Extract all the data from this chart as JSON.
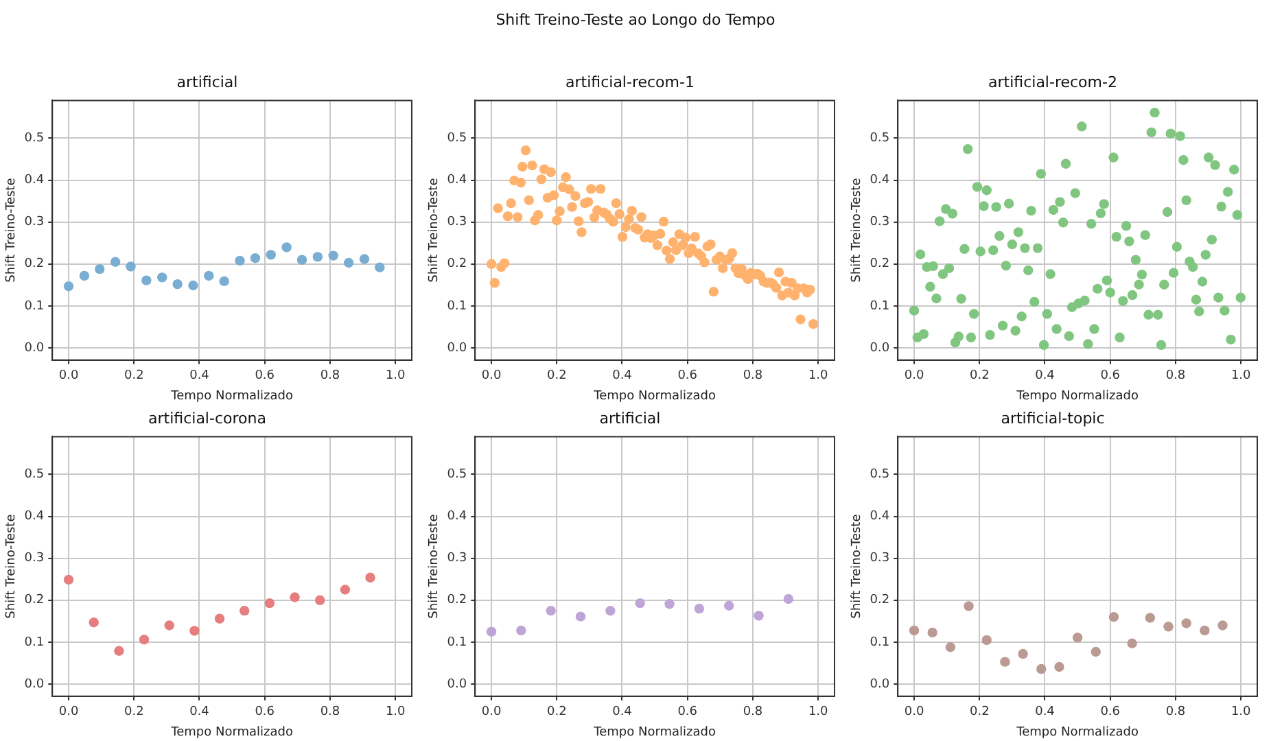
{
  "chart_data": [
    {
      "type": "scatter",
      "title": "artificial",
      "xlabel": "Tempo Normalizado",
      "ylabel": "Shift Treino-Teste",
      "annotations": [
        "Shift Treino-Teste ao Longo do Tempo"
      ],
      "xlim": [
        -0.05,
        1.05
      ],
      "ylim": [
        -0.029,
        0.59
      ],
      "xticks": [
        {
          "value": 0,
          "label": "0.0"
        },
        {
          "value": 0.2,
          "label": "0.2"
        },
        {
          "value": 0.4,
          "label": "0.4"
        },
        {
          "value": 0.6,
          "label": "0.6"
        },
        {
          "value": 0.8,
          "label": "0.8"
        },
        {
          "value": 1,
          "label": "1.0"
        }
      ],
      "yticks": [
        {
          "value": 0,
          "label": "0.0"
        },
        {
          "value": 0.1,
          "label": "0.1"
        },
        {
          "value": 0.2,
          "label": "0.2"
        },
        {
          "value": 0.3,
          "label": "0.3"
        },
        {
          "value": 0.4,
          "label": "0.4"
        },
        {
          "value": 0.5,
          "label": "0.5"
        }
      ],
      "grid": true,
      "legend": false,
      "marker": "circle",
      "series": [
        {
          "color": "#79add2",
          "x": [
            0,
            0.048,
            0.095,
            0.143,
            0.19,
            0.238,
            0.286,
            0.333,
            0.381,
            0.429,
            0.476,
            0.524,
            0.571,
            0.619,
            0.667,
            0.714,
            0.762,
            0.81,
            0.857,
            0.905,
            0.952
          ],
          "values": [
            0.147,
            0.172,
            0.188,
            0.205,
            0.194,
            0.161,
            0.168,
            0.152,
            0.149,
            0.172,
            0.159,
            0.208,
            0.214,
            0.222,
            0.24,
            0.21,
            0.217,
            0.22,
            0.203,
            0.212,
            0.192
          ]
        }
      ]
    },
    {
      "type": "scatter",
      "title": "artificial-recom-1",
      "xlabel": "Tempo Normalizado",
      "ylabel": "Shift Treino-Teste",
      "xlim": [
        -0.05,
        1.05
      ],
      "ylim": [
        -0.029,
        0.59
      ],
      "xticks": [
        {
          "value": 0,
          "label": "0.0"
        },
        {
          "value": 0.2,
          "label": "0.2"
        },
        {
          "value": 0.4,
          "label": "0.4"
        },
        {
          "value": 0.6,
          "label": "0.6"
        },
        {
          "value": 0.8,
          "label": "0.8"
        },
        {
          "value": 1,
          "label": "1.0"
        }
      ],
      "yticks": [
        {
          "value": 0,
          "label": "0.0"
        },
        {
          "value": 0.1,
          "label": "0.1"
        },
        {
          "value": 0.2,
          "label": "0.2"
        },
        {
          "value": 0.3,
          "label": "0.3"
        },
        {
          "value": 0.4,
          "label": "0.4"
        },
        {
          "value": 0.5,
          "label": "0.5"
        }
      ],
      "grid": true,
      "legend": false,
      "marker": "circle",
      "series": [
        {
          "color": "#ffb26e",
          "x": [
            0,
            0.01,
            0.02,
            0.03,
            0.04,
            0.05,
            0.06,
            0.07,
            0.08,
            0.09,
            0.095,
            0.105,
            0.115,
            0.125,
            0.133,
            0.143,
            0.153,
            0.162,
            0.172,
            0.182,
            0.191,
            0.2,
            0.209,
            0.219,
            0.228,
            0.238,
            0.247,
            0.257,
            0.267,
            0.276,
            0.286,
            0.296,
            0.305,
            0.315,
            0.324,
            0.334,
            0.344,
            0.353,
            0.363,
            0.373,
            0.382,
            0.392,
            0.401,
            0.411,
            0.421,
            0.43,
            0.44,
            0.449,
            0.459,
            0.469,
            0.478,
            0.488,
            0.498,
            0.508,
            0.517,
            0.527,
            0.536,
            0.546,
            0.556,
            0.565,
            0.575,
            0.585,
            0.594,
            0.604,
            0.613,
            0.623,
            0.633,
            0.642,
            0.652,
            0.661,
            0.671,
            0.68,
            0.689,
            0.699,
            0.708,
            0.718,
            0.728,
            0.737,
            0.747,
            0.756,
            0.766,
            0.776,
            0.785,
            0.795,
            0.804,
            0.814,
            0.823,
            0.833,
            0.843,
            0.852,
            0.862,
            0.872,
            0.88,
            0.89,
            0.9,
            0.909,
            0.919,
            0.928,
            0.938,
            0.946,
            0.956,
            0.966,
            0.975,
            0.985
          ],
          "values": [
            0.2,
            0.155,
            0.333,
            0.193,
            0.202,
            0.314,
            0.345,
            0.399,
            0.312,
            0.394,
            0.432,
            0.471,
            0.352,
            0.435,
            0.304,
            0.317,
            0.402,
            0.426,
            0.358,
            0.419,
            0.364,
            0.304,
            0.326,
            0.383,
            0.407,
            0.378,
            0.336,
            0.362,
            0.302,
            0.276,
            0.345,
            0.348,
            0.379,
            0.311,
            0.328,
            0.379,
            0.323,
            0.318,
            0.308,
            0.301,
            0.345,
            0.319,
            0.265,
            0.288,
            0.307,
            0.327,
            0.286,
            0.282,
            0.312,
            0.263,
            0.271,
            0.262,
            0.268,
            0.245,
            0.272,
            0.301,
            0.232,
            0.212,
            0.252,
            0.233,
            0.271,
            0.245,
            0.263,
            0.226,
            0.237,
            0.265,
            0.225,
            0.219,
            0.204,
            0.242,
            0.247,
            0.134,
            0.21,
            0.218,
            0.19,
            0.21,
            0.213,
            0.226,
            0.19,
            0.178,
            0.188,
            0.173,
            0.164,
            0.179,
            0.175,
            0.177,
            0.172,
            0.158,
            0.155,
            0.156,
            0.152,
            0.143,
            0.18,
            0.125,
            0.158,
            0.132,
            0.155,
            0.125,
            0.142,
            0.068,
            0.142,
            0.132,
            0.139,
            0.057
          ]
        }
      ]
    },
    {
      "type": "scatter",
      "title": "artificial-recom-2",
      "xlabel": "Tempo Normalizado",
      "ylabel": "Shift Treino-Teste",
      "xlim": [
        -0.05,
        1.05
      ],
      "ylim": [
        -0.029,
        0.59
      ],
      "xticks": [
        {
          "value": 0,
          "label": "0.0"
        },
        {
          "value": 0.2,
          "label": "0.2"
        },
        {
          "value": 0.4,
          "label": "0.4"
        },
        {
          "value": 0.6,
          "label": "0.6"
        },
        {
          "value": 0.8,
          "label": "0.8"
        },
        {
          "value": 1,
          "label": "1.0"
        }
      ],
      "yticks": [
        {
          "value": 0,
          "label": "0.0"
        },
        {
          "value": 0.1,
          "label": "0.1"
        },
        {
          "value": 0.2,
          "label": "0.2"
        },
        {
          "value": 0.3,
          "label": "0.3"
        },
        {
          "value": 0.4,
          "label": "0.4"
        },
        {
          "value": 0.5,
          "label": "0.5"
        }
      ],
      "grid": true,
      "legend": false,
      "marker": "circle",
      "series": [
        {
          "color": "#80c680",
          "x": [
            0,
            0.01,
            0.019,
            0.029,
            0.039,
            0.049,
            0.058,
            0.068,
            0.078,
            0.088,
            0.097,
            0.107,
            0.117,
            0.126,
            0.136,
            0.144,
            0.154,
            0.164,
            0.174,
            0.183,
            0.193,
            0.203,
            0.213,
            0.222,
            0.232,
            0.242,
            0.251,
            0.261,
            0.271,
            0.281,
            0.29,
            0.3,
            0.31,
            0.319,
            0.329,
            0.339,
            0.349,
            0.358,
            0.368,
            0.378,
            0.388,
            0.397,
            0.407,
            0.417,
            0.426,
            0.436,
            0.446,
            0.456,
            0.464,
            0.474,
            0.483,
            0.493,
            0.503,
            0.513,
            0.522,
            0.532,
            0.542,
            0.551,
            0.561,
            0.571,
            0.581,
            0.59,
            0.6,
            0.61,
            0.619,
            0.629,
            0.639,
            0.649,
            0.658,
            0.668,
            0.678,
            0.688,
            0.697,
            0.707,
            0.717,
            0.726,
            0.736,
            0.746,
            0.756,
            0.765,
            0.775,
            0.785,
            0.794,
            0.804,
            0.814,
            0.824,
            0.833,
            0.843,
            0.853,
            0.863,
            0.872,
            0.882,
            0.892,
            0.901,
            0.911,
            0.921,
            0.931,
            0.94,
            0.95,
            0.96,
            0.969,
            0.979,
            0.989,
            0.999
          ],
          "values": [
            0.089,
            0.025,
            0.223,
            0.033,
            0.193,
            0.146,
            0.195,
            0.118,
            0.302,
            0.176,
            0.331,
            0.19,
            0.32,
            0.013,
            0.027,
            0.117,
            0.236,
            0.474,
            0.025,
            0.081,
            0.384,
            0.23,
            0.338,
            0.376,
            0.031,
            0.233,
            0.336,
            0.267,
            0.053,
            0.196,
            0.344,
            0.247,
            0.041,
            0.276,
            0.075,
            0.238,
            0.185,
            0.327,
            0.11,
            0.238,
            0.415,
            0.007,
            0.081,
            0.176,
            0.329,
            0.045,
            0.348,
            0.299,
            0.439,
            0.028,
            0.097,
            0.369,
            0.106,
            0.528,
            0.113,
            0.009,
            0.296,
            0.045,
            0.141,
            0.321,
            0.343,
            0.161,
            0.132,
            0.454,
            0.265,
            0.025,
            0.112,
            0.291,
            0.254,
            0.126,
            0.21,
            0.151,
            0.175,
            0.269,
            0.079,
            0.514,
            0.561,
            0.079,
            0.007,
            0.151,
            0.324,
            0.511,
            0.179,
            0.241,
            0.505,
            0.448,
            0.352,
            0.206,
            0.193,
            0.115,
            0.087,
            0.158,
            0.222,
            0.454,
            0.258,
            0.436,
            0.12,
            0.337,
            0.089,
            0.372,
            0.02,
            0.425,
            0.317,
            0.12
          ]
        }
      ]
    },
    {
      "type": "scatter",
      "title": "artificial-corona",
      "xlabel": "Tempo Normalizado",
      "ylabel": "Shift Treino-Teste",
      "xlim": [
        -0.05,
        1.05
      ],
      "ylim": [
        -0.029,
        0.59
      ],
      "xticks": [
        {
          "value": 0,
          "label": "0.0"
        },
        {
          "value": 0.2,
          "label": "0.2"
        },
        {
          "value": 0.4,
          "label": "0.4"
        },
        {
          "value": 0.6,
          "label": "0.6"
        },
        {
          "value": 0.8,
          "label": "0.8"
        },
        {
          "value": 1,
          "label": "1.0"
        }
      ],
      "yticks": [
        {
          "value": 0,
          "label": "0.0"
        },
        {
          "value": 0.1,
          "label": "0.1"
        },
        {
          "value": 0.2,
          "label": "0.2"
        },
        {
          "value": 0.3,
          "label": "0.3"
        },
        {
          "value": 0.4,
          "label": "0.4"
        },
        {
          "value": 0.5,
          "label": "0.5"
        }
      ],
      "grid": true,
      "legend": false,
      "marker": "circle",
      "series": [
        {
          "color": "#e67d7e",
          "x": [
            0,
            0.077,
            0.154,
            0.231,
            0.308,
            0.385,
            0.462,
            0.538,
            0.615,
            0.692,
            0.769,
            0.846,
            0.923
          ],
          "values": [
            0.249,
            0.147,
            0.079,
            0.106,
            0.14,
            0.127,
            0.156,
            0.175,
            0.193,
            0.207,
            0.2,
            0.225,
            0.254
          ]
        }
      ]
    },
    {
      "type": "scatter",
      "title": "artificial",
      "xlabel": "Tempo Normalizado",
      "ylabel": "Shift Treino-Teste",
      "xlim": [
        -0.05,
        1.05
      ],
      "ylim": [
        -0.029,
        0.59
      ],
      "xticks": [
        {
          "value": 0,
          "label": "0.0"
        },
        {
          "value": 0.2,
          "label": "0.2"
        },
        {
          "value": 0.4,
          "label": "0.4"
        },
        {
          "value": 0.6,
          "label": "0.6"
        },
        {
          "value": 0.8,
          "label": "0.8"
        },
        {
          "value": 1,
          "label": "1.0"
        }
      ],
      "yticks": [
        {
          "value": 0,
          "label": "0.0"
        },
        {
          "value": 0.1,
          "label": "0.1"
        },
        {
          "value": 0.2,
          "label": "0.2"
        },
        {
          "value": 0.3,
          "label": "0.3"
        },
        {
          "value": 0.4,
          "label": "0.4"
        },
        {
          "value": 0.5,
          "label": "0.5"
        }
      ],
      "grid": true,
      "legend": false,
      "marker": "circle",
      "series": [
        {
          "color": "#bfa4d7",
          "x": [
            0,
            0.091,
            0.182,
            0.273,
            0.364,
            0.455,
            0.545,
            0.636,
            0.727,
            0.818,
            0.909
          ],
          "values": [
            0.125,
            0.128,
            0.175,
            0.161,
            0.175,
            0.193,
            0.191,
            0.18,
            0.187,
            0.163,
            0.203
          ]
        }
      ]
    },
    {
      "type": "scatter",
      "title": "artificial-topic",
      "xlabel": "Tempo Normalizado",
      "ylabel": "Shift Treino-Teste",
      "xlim": [
        -0.05,
        1.05
      ],
      "ylim": [
        -0.029,
        0.59
      ],
      "xticks": [
        {
          "value": 0,
          "label": "0.0"
        },
        {
          "value": 0.2,
          "label": "0.2"
        },
        {
          "value": 0.4,
          "label": "0.4"
        },
        {
          "value": 0.6,
          "label": "0.6"
        },
        {
          "value": 0.8,
          "label": "0.8"
        },
        {
          "value": 1,
          "label": "1.0"
        }
      ],
      "yticks": [
        {
          "value": 0,
          "label": "0.0"
        },
        {
          "value": 0.1,
          "label": "0.1"
        },
        {
          "value": 0.2,
          "label": "0.2"
        },
        {
          "value": 0.3,
          "label": "0.3"
        },
        {
          "value": 0.4,
          "label": "0.4"
        },
        {
          "value": 0.5,
          "label": "0.5"
        }
      ],
      "grid": true,
      "legend": false,
      "marker": "circle",
      "series": [
        {
          "color": "#ba9a93",
          "x": [
            0,
            0.056,
            0.111,
            0.167,
            0.222,
            0.278,
            0.333,
            0.389,
            0.444,
            0.5,
            0.556,
            0.611,
            0.667,
            0.722,
            0.778,
            0.833,
            0.889,
            0.944
          ],
          "values": [
            0.128,
            0.123,
            0.088,
            0.186,
            0.105,
            0.053,
            0.072,
            0.036,
            0.041,
            0.111,
            0.077,
            0.16,
            0.097,
            0.158,
            0.137,
            0.145,
            0.128,
            0.14
          ]
        }
      ]
    }
  ]
}
